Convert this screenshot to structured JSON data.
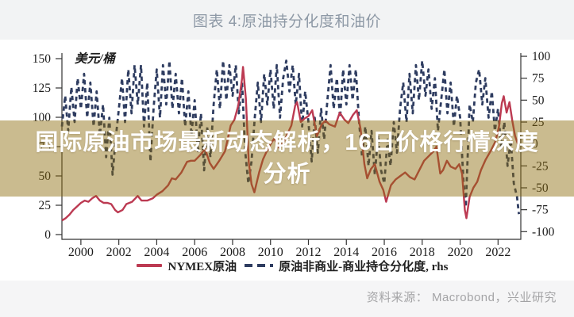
{
  "header": {
    "title": "图表 4:原油持分化度和油价"
  },
  "overlay": {
    "line1": "国际原油市场最新动态解析，16日价格行情深度",
    "line2": "分析",
    "bg_color": "rgba(140,106,10,0.46)",
    "text_color": "#ffffff"
  },
  "footer": {
    "source_label": "资料来源： Macrobond，兴业研究"
  },
  "chart_data": {
    "type": "line",
    "title": "图表 4:原油持分化度和油价",
    "unit_label": "美元/桶",
    "x_range": [
      1999,
      2023.2
    ],
    "x_ticks": [
      2000,
      2002,
      2004,
      2006,
      2008,
      2010,
      2012,
      2014,
      2016,
      2018,
      2020,
      2022
    ],
    "left_axis": {
      "label": "美元/桶",
      "min": 0,
      "max": 150,
      "step": 25
    },
    "right_axis": {
      "min": -100,
      "max": 100,
      "step": 25
    },
    "grid": false,
    "legend_position": "bottom",
    "legend": [
      {
        "name": "NYMEX原油",
        "color": "#bc3a52",
        "style": "solid",
        "axis": "left"
      },
      {
        "name": "原油非商业-商业持仓分化度, rhs",
        "color": "#2e3c60",
        "style": "dashed",
        "axis": "right"
      }
    ],
    "series": [
      {
        "name": "原油非商业-商业持仓分化度, rhs",
        "axis": "right",
        "color": "#2e3c60",
        "style": "dashed",
        "points": [
          [
            1999.0,
            20
          ],
          [
            1999.17,
            55
          ],
          [
            1999.33,
            15
          ],
          [
            1999.5,
            65
          ],
          [
            1999.67,
            25
          ],
          [
            1999.83,
            75
          ],
          [
            2000.0,
            40
          ],
          [
            2000.17,
            80
          ],
          [
            2000.33,
            30
          ],
          [
            2000.5,
            70
          ],
          [
            2000.67,
            20
          ],
          [
            2000.83,
            60
          ],
          [
            2001.0,
            10
          ],
          [
            2001.17,
            45
          ],
          [
            2001.33,
            -15
          ],
          [
            2001.5,
            30
          ],
          [
            2001.67,
            -35
          ],
          [
            2001.83,
            5
          ],
          [
            2002.0,
            40
          ],
          [
            2002.17,
            75
          ],
          [
            2002.33,
            25
          ],
          [
            2002.5,
            85
          ],
          [
            2002.67,
            35
          ],
          [
            2002.83,
            90
          ],
          [
            2003.0,
            45
          ],
          [
            2003.17,
            90
          ],
          [
            2003.33,
            20
          ],
          [
            2003.5,
            70
          ],
          [
            2003.67,
            -20
          ],
          [
            2003.83,
            40
          ],
          [
            2004.0,
            85
          ],
          [
            2004.17,
            30
          ],
          [
            2004.33,
            90
          ],
          [
            2004.5,
            45
          ],
          [
            2004.67,
            95
          ],
          [
            2004.83,
            40
          ],
          [
            2005.0,
            80
          ],
          [
            2005.17,
            35
          ],
          [
            2005.33,
            75
          ],
          [
            2005.5,
            20
          ],
          [
            2005.67,
            60
          ],
          [
            2005.83,
            10
          ],
          [
            2006.0,
            50
          ],
          [
            2006.17,
            -10
          ],
          [
            2006.33,
            35
          ],
          [
            2006.5,
            -30
          ],
          [
            2006.67,
            20
          ],
          [
            2006.83,
            -15
          ],
          [
            2007.0,
            45
          ],
          [
            2007.17,
            85
          ],
          [
            2007.33,
            40
          ],
          [
            2007.5,
            95
          ],
          [
            2007.67,
            50
          ],
          [
            2007.83,
            90
          ],
          [
            2008.0,
            55
          ],
          [
            2008.17,
            90
          ],
          [
            2008.33,
            35
          ],
          [
            2008.5,
            70
          ],
          [
            2008.67,
            -10
          ],
          [
            2008.83,
            -45
          ],
          [
            2009.0,
            -20
          ],
          [
            2009.17,
            30
          ],
          [
            2009.33,
            70
          ],
          [
            2009.5,
            25
          ],
          [
            2009.67,
            80
          ],
          [
            2009.83,
            45
          ],
          [
            2010.0,
            85
          ],
          [
            2010.17,
            40
          ],
          [
            2010.33,
            90
          ],
          [
            2010.5,
            30
          ],
          [
            2010.67,
            75
          ],
          [
            2010.83,
            95
          ],
          [
            2011.0,
            60
          ],
          [
            2011.17,
            90
          ],
          [
            2011.33,
            45
          ],
          [
            2011.5,
            80
          ],
          [
            2011.67,
            20
          ],
          [
            2011.83,
            60
          ],
          [
            2012.0,
            25
          ],
          [
            2012.17,
            -20
          ],
          [
            2012.33,
            30
          ],
          [
            2012.5,
            -10
          ],
          [
            2012.67,
            40
          ],
          [
            2012.83,
            5
          ],
          [
            2013.0,
            50
          ],
          [
            2013.17,
            90
          ],
          [
            2013.33,
            40
          ],
          [
            2013.5,
            75
          ],
          [
            2013.67,
            30
          ],
          [
            2013.83,
            85
          ],
          [
            2014.0,
            45
          ],
          [
            2014.17,
            90
          ],
          [
            2014.33,
            50
          ],
          [
            2014.5,
            85
          ],
          [
            2014.67,
            25
          ],
          [
            2014.83,
            -15
          ],
          [
            2015.0,
            20
          ],
          [
            2015.17,
            -25
          ],
          [
            2015.33,
            15
          ],
          [
            2015.5,
            -35
          ],
          [
            2015.67,
            10
          ],
          [
            2015.83,
            -30
          ],
          [
            2016.0,
            -45
          ],
          [
            2016.17,
            5
          ],
          [
            2016.33,
            -25
          ],
          [
            2016.5,
            25
          ],
          [
            2016.67,
            -10
          ],
          [
            2016.83,
            40
          ],
          [
            2017.0,
            70
          ],
          [
            2017.17,
            25
          ],
          [
            2017.33,
            80
          ],
          [
            2017.5,
            35
          ],
          [
            2017.67,
            90
          ],
          [
            2017.83,
            50
          ],
          [
            2018.0,
            95
          ],
          [
            2018.17,
            55
          ],
          [
            2018.33,
            85
          ],
          [
            2018.5,
            40
          ],
          [
            2018.67,
            75
          ],
          [
            2018.83,
            15
          ],
          [
            2019.0,
            50
          ],
          [
            2019.17,
            85
          ],
          [
            2019.33,
            35
          ],
          [
            2019.5,
            70
          ],
          [
            2019.67,
            20
          ],
          [
            2019.83,
            55
          ],
          [
            2020.0,
            30
          ],
          [
            2020.17,
            -40
          ],
          [
            2020.3,
            -72
          ],
          [
            2020.5,
            45
          ],
          [
            2020.67,
            25
          ],
          [
            2020.83,
            70
          ],
          [
            2021.0,
            85
          ],
          [
            2021.17,
            45
          ],
          [
            2021.33,
            75
          ],
          [
            2021.5,
            30
          ],
          [
            2021.67,
            60
          ],
          [
            2021.83,
            15
          ],
          [
            2022.0,
            40
          ],
          [
            2022.17,
            -5
          ],
          [
            2022.33,
            25
          ],
          [
            2022.5,
            -25
          ],
          [
            2022.67,
            5
          ],
          [
            2022.83,
            -45
          ],
          [
            2023.0,
            -60
          ],
          [
            2023.1,
            -80
          ]
        ]
      },
      {
        "name": "NYMEX原油",
        "axis": "left",
        "color": "#bc3a52",
        "style": "solid",
        "points": [
          [
            1999.0,
            12
          ],
          [
            1999.2,
            14
          ],
          [
            1999.4,
            17
          ],
          [
            1999.6,
            21
          ],
          [
            1999.8,
            24
          ],
          [
            2000.0,
            27
          ],
          [
            2000.2,
            29
          ],
          [
            2000.4,
            28
          ],
          [
            2000.6,
            31
          ],
          [
            2000.8,
            33
          ],
          [
            2001.0,
            29
          ],
          [
            2001.2,
            27
          ],
          [
            2001.4,
            27
          ],
          [
            2001.6,
            26
          ],
          [
            2001.8,
            21
          ],
          [
            2001.95,
            19
          ],
          [
            2002.2,
            21
          ],
          [
            2002.4,
            26
          ],
          [
            2002.7,
            28
          ],
          [
            2003.0,
            33
          ],
          [
            2003.2,
            29
          ],
          [
            2003.5,
            29
          ],
          [
            2003.8,
            31
          ],
          [
            2004.0,
            34
          ],
          [
            2004.3,
            37
          ],
          [
            2004.6,
            42
          ],
          [
            2004.8,
            48
          ],
          [
            2005.0,
            47
          ],
          [
            2005.3,
            53
          ],
          [
            2005.6,
            62
          ],
          [
            2005.8,
            63
          ],
          [
            2006.0,
            63
          ],
          [
            2006.3,
            68
          ],
          [
            2006.55,
            73
          ],
          [
            2006.8,
            61
          ],
          [
            2007.0,
            56
          ],
          [
            2007.3,
            63
          ],
          [
            2007.6,
            71
          ],
          [
            2007.9,
            93
          ],
          [
            2008.1,
            98
          ],
          [
            2008.3,
            110
          ],
          [
            2008.5,
            133
          ],
          [
            2008.55,
            143
          ],
          [
            2008.7,
            116
          ],
          [
            2008.85,
            62
          ],
          [
            2009.0,
            43
          ],
          [
            2009.15,
            36
          ],
          [
            2009.4,
            53
          ],
          [
            2009.6,
            64
          ],
          [
            2009.8,
            71
          ],
          [
            2010.0,
            77
          ],
          [
            2010.2,
            82
          ],
          [
            2010.45,
            74
          ],
          [
            2010.7,
            79
          ],
          [
            2010.9,
            86
          ],
          [
            2011.1,
            93
          ],
          [
            2011.3,
            110
          ],
          [
            2011.4,
            113
          ],
          [
            2011.6,
            96
          ],
          [
            2011.8,
            99
          ],
          [
            2012.0,
            101
          ],
          [
            2012.2,
            106
          ],
          [
            2012.45,
            84
          ],
          [
            2012.7,
            94
          ],
          [
            2012.9,
            97
          ],
          [
            2013.1,
            94
          ],
          [
            2013.4,
            92
          ],
          [
            2013.65,
            104
          ],
          [
            2013.9,
            98
          ],
          [
            2014.1,
            95
          ],
          [
            2014.35,
            102
          ],
          [
            2014.55,
            106
          ],
          [
            2014.75,
            90
          ],
          [
            2014.95,
            60
          ],
          [
            2015.1,
            48
          ],
          [
            2015.3,
            56
          ],
          [
            2015.5,
            60
          ],
          [
            2015.75,
            45
          ],
          [
            2015.95,
            38
          ],
          [
            2016.1,
            28
          ],
          [
            2016.35,
            42
          ],
          [
            2016.6,
            47
          ],
          [
            2016.85,
            50
          ],
          [
            2017.1,
            53
          ],
          [
            2017.35,
            49
          ],
          [
            2017.6,
            47
          ],
          [
            2017.85,
            55
          ],
          [
            2018.1,
            63
          ],
          [
            2018.35,
            67
          ],
          [
            2018.6,
            71
          ],
          [
            2018.75,
            75
          ],
          [
            2018.95,
            52
          ],
          [
            2019.1,
            55
          ],
          [
            2019.3,
            63
          ],
          [
            2019.5,
            58
          ],
          [
            2019.75,
            56
          ],
          [
            2019.95,
            60
          ],
          [
            2020.1,
            52
          ],
          [
            2020.25,
            21
          ],
          [
            2020.33,
            14
          ],
          [
            2020.5,
            32
          ],
          [
            2020.7,
            40
          ],
          [
            2020.9,
            45
          ],
          [
            2021.1,
            55
          ],
          [
            2021.35,
            64
          ],
          [
            2021.6,
            71
          ],
          [
            2021.85,
            79
          ],
          [
            2022.05,
            92
          ],
          [
            2022.2,
            112
          ],
          [
            2022.3,
            118
          ],
          [
            2022.45,
            104
          ],
          [
            2022.6,
            113
          ],
          [
            2022.75,
            97
          ],
          [
            2022.9,
            84
          ],
          [
            2023.05,
            77
          ]
        ]
      }
    ],
    "source": "资料来源： Macrobond，兴业研究"
  }
}
